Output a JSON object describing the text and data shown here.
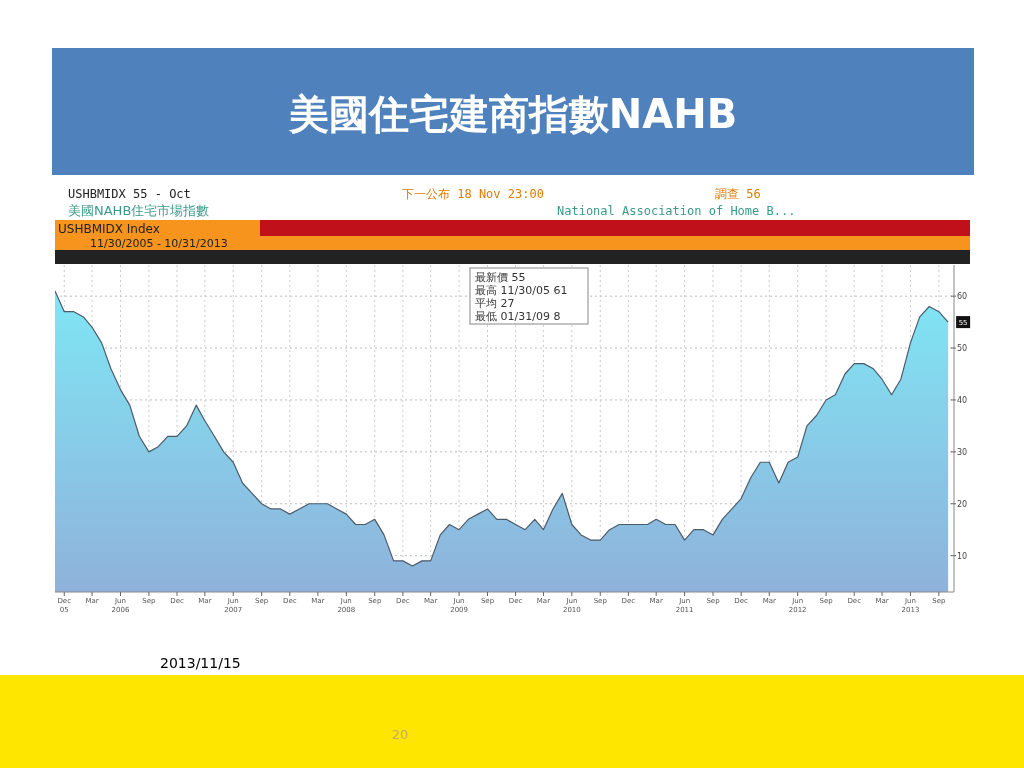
{
  "chart_data": {
    "type": "area",
    "title": "美國住宅建商指數NAHB",
    "subtitle": "美國NAHB住宅市場指數",
    "annotations": [
      "USHBMIDX    55    - Oct",
      "下一公布 18 Nov 23:00",
      "調查 56",
      "National Association of Home B...",
      "USHBMIDX Index",
      "11/30/2005 - 10/31/2013",
      "最新價  55",
      "最高 11/30/05  61",
      "平均  27",
      "最低 01/31/09  8",
      {
        "text": "55",
        "x": "2013-10",
        "y": 55
      },
      "2013/11/15",
      "20"
    ],
    "x": [
      "2005-11",
      "2005-12",
      "2006-01",
      "2006-02",
      "2006-03",
      "2006-04",
      "2006-05",
      "2006-06",
      "2006-07",
      "2006-08",
      "2006-09",
      "2006-10",
      "2006-11",
      "2006-12",
      "2007-01",
      "2007-02",
      "2007-03",
      "2007-04",
      "2007-05",
      "2007-06",
      "2007-07",
      "2007-08",
      "2007-09",
      "2007-10",
      "2007-11",
      "2007-12",
      "2008-01",
      "2008-02",
      "2008-03",
      "2008-04",
      "2008-05",
      "2008-06",
      "2008-07",
      "2008-08",
      "2008-09",
      "2008-10",
      "2008-11",
      "2008-12",
      "2009-01",
      "2009-02",
      "2009-03",
      "2009-04",
      "2009-05",
      "2009-06",
      "2009-07",
      "2009-08",
      "2009-09",
      "2009-10",
      "2009-11",
      "2009-12",
      "2010-01",
      "2010-02",
      "2010-03",
      "2010-04",
      "2010-05",
      "2010-06",
      "2010-07",
      "2010-08",
      "2010-09",
      "2010-10",
      "2010-11",
      "2010-12",
      "2011-01",
      "2011-02",
      "2011-03",
      "2011-04",
      "2011-05",
      "2011-06",
      "2011-07",
      "2011-08",
      "2011-09",
      "2011-10",
      "2011-11",
      "2011-12",
      "2012-01",
      "2012-02",
      "2012-03",
      "2012-04",
      "2012-05",
      "2012-06",
      "2012-07",
      "2012-08",
      "2012-09",
      "2012-10",
      "2012-11",
      "2012-12",
      "2013-01",
      "2013-02",
      "2013-03",
      "2013-04",
      "2013-05",
      "2013-06",
      "2013-07",
      "2013-08",
      "2013-09",
      "2013-10"
    ],
    "series": [
      {
        "color": "#8fb2da",
        "values": [
          61,
          57,
          57,
          56,
          54,
          51,
          46,
          42,
          39,
          33,
          30,
          31,
          33,
          33,
          35,
          39,
          36,
          33,
          30,
          28,
          24,
          22,
          20,
          19,
          19,
          18,
          19,
          20,
          20,
          20,
          19,
          18,
          16,
          16,
          17,
          14,
          9,
          9,
          8,
          9,
          9,
          14,
          16,
          15,
          17,
          18,
          19,
          17,
          17,
          16,
          15,
          17,
          15,
          19,
          22,
          16,
          14,
          13,
          13,
          15,
          16,
          16,
          16,
          16,
          17,
          16,
          16,
          13,
          15,
          15,
          14,
          17,
          19,
          21,
          25,
          28,
          28,
          24,
          28,
          29,
          35,
          37,
          40,
          41,
          45,
          47,
          47,
          46,
          44,
          41,
          44,
          51,
          56,
          58,
          57,
          55
        ]
      }
    ],
    "xlim": [
      "2005-11-01",
      "2013-10-20"
    ],
    "ylim": [
      3,
      66
    ],
    "xticks": [
      {
        "value": "2005-12",
        "label": "Dec\n05"
      },
      {
        "value": "2006-03",
        "label": "Mar"
      },
      {
        "value": "2006-06",
        "label": "Jun\n2006"
      },
      {
        "value": "2006-09",
        "label": "Sep"
      },
      {
        "value": "2006-12",
        "label": "Dec"
      },
      {
        "value": "2007-03",
        "label": "Mar"
      },
      {
        "value": "2007-06",
        "label": "Jun\n2007"
      },
      {
        "value": "2007-09",
        "label": "Sep"
      },
      {
        "value": "2007-12",
        "label": "Dec"
      },
      {
        "value": "2008-03",
        "label": "Mar"
      },
      {
        "value": "2008-06",
        "label": "Jun\n2008"
      },
      {
        "value": "2008-09",
        "label": "Sep"
      },
      {
        "value": "2008-12",
        "label": "Dec"
      },
      {
        "value": "2009-03",
        "label": "Mar"
      },
      {
        "value": "2009-06",
        "label": "Jun\n2009"
      },
      {
        "value": "2009-09",
        "label": "Sep"
      },
      {
        "value": "2009-12",
        "label": "Dec"
      },
      {
        "value": "2010-03",
        "label": "Mar"
      },
      {
        "value": "2010-06",
        "label": "Jun\n2010"
      },
      {
        "value": "2010-09",
        "label": "Sep"
      },
      {
        "value": "2010-12",
        "label": "Dec"
      },
      {
        "value": "2011-03",
        "label": "Mar"
      },
      {
        "value": "2011-06",
        "label": "Jun\n2011"
      },
      {
        "value": "2011-09",
        "label": "Sep"
      },
      {
        "value": "2011-12",
        "label": "Dec"
      },
      {
        "value": "2012-03",
        "label": "Mar"
      },
      {
        "value": "2012-06",
        "label": "Jun\n2012"
      },
      {
        "value": "2012-09",
        "label": "Sep"
      },
      {
        "value": "2012-12",
        "label": "Dec"
      },
      {
        "value": "2013-03",
        "label": "Mar"
      },
      {
        "value": "2013-06",
        "label": "Jun\n2013"
      },
      {
        "value": "2013-09",
        "label": "Sep"
      }
    ],
    "yticks": [
      10,
      20,
      30,
      40,
      50,
      60
    ],
    "grid": true
  }
}
